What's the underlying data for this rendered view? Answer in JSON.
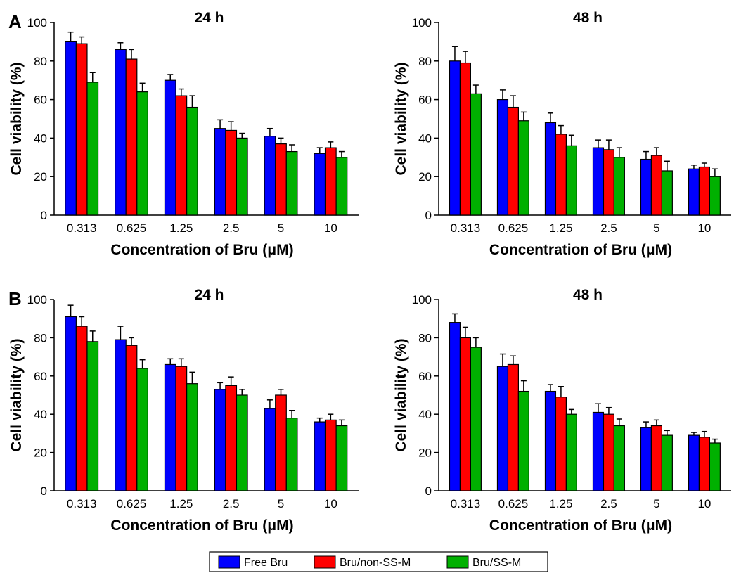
{
  "legend": {
    "items": [
      {
        "label": "Free Bru",
        "color": "#0000ff"
      },
      {
        "label": "Bru/non-SS-M",
        "color": "#ff0000"
      },
      {
        "label": "Bru/SS-M",
        "color": "#00b000"
      }
    ]
  },
  "chart_data": [
    {
      "type": "bar",
      "panel_letter": "A",
      "title": "24 h",
      "xlabel": "Concentration of Bru (μM)",
      "ylabel": "Cell viability (%)",
      "ylim": [
        0,
        100
      ],
      "yticks": [
        0,
        20,
        40,
        60,
        80,
        100
      ],
      "grid": false,
      "categories": [
        "0.313",
        "0.625",
        "1.25",
        "2.5",
        "5",
        "10"
      ],
      "series": [
        {
          "name": "Free Bru",
          "color": "#0000ff",
          "values": [
            90,
            86,
            70,
            45,
            41,
            32
          ],
          "errors": [
            5,
            3.5,
            3,
            4.5,
            4,
            3
          ]
        },
        {
          "name": "Bru/non-SS-M",
          "color": "#ff0000",
          "values": [
            89,
            81,
            62,
            44,
            37,
            35
          ],
          "errors": [
            3.5,
            5,
            3.5,
            4.5,
            3,
            3
          ]
        },
        {
          "name": "Bru/SS-M",
          "color": "#00b000",
          "values": [
            69,
            64,
            56,
            40,
            33,
            30
          ],
          "errors": [
            5,
            4.5,
            6,
            2.5,
            3.5,
            3
          ]
        }
      ]
    },
    {
      "type": "bar",
      "panel_letter": "",
      "title": "48 h",
      "xlabel": "Concentration of Bru (μM)",
      "ylabel": "Cell viability (%)",
      "ylim": [
        0,
        100
      ],
      "yticks": [
        0,
        20,
        40,
        60,
        80,
        100
      ],
      "grid": false,
      "categories": [
        "0.313",
        "0.625",
        "1.25",
        "2.5",
        "5",
        "10"
      ],
      "series": [
        {
          "name": "Free Bru",
          "color": "#0000ff",
          "values": [
            80,
            60,
            48,
            35,
            29,
            24
          ],
          "errors": [
            7.5,
            5,
            5,
            4,
            4,
            2
          ]
        },
        {
          "name": "Bru/non-SS-M",
          "color": "#ff0000",
          "values": [
            79,
            56,
            42,
            34,
            31,
            25
          ],
          "errors": [
            6,
            6,
            4.5,
            5,
            4,
            2
          ]
        },
        {
          "name": "Bru/SS-M",
          "color": "#00b000",
          "values": [
            63,
            49,
            36,
            30,
            23,
            20
          ],
          "errors": [
            4.5,
            4.5,
            5.5,
            5,
            5,
            4
          ]
        }
      ]
    },
    {
      "type": "bar",
      "panel_letter": "B",
      "title": "24 h",
      "xlabel": "Concentration of Bru (μM)",
      "ylabel": "Cell viability (%)",
      "ylim": [
        0,
        100
      ],
      "yticks": [
        0,
        20,
        40,
        60,
        80,
        100
      ],
      "grid": false,
      "categories": [
        "0.313",
        "0.625",
        "1.25",
        "2.5",
        "5",
        "10"
      ],
      "series": [
        {
          "name": "Free Bru",
          "color": "#0000ff",
          "values": [
            91,
            79,
            66,
            53,
            43,
            36
          ],
          "errors": [
            6,
            7,
            3,
            3.5,
            4.5,
            2
          ]
        },
        {
          "name": "Bru/non-SS-M",
          "color": "#ff0000",
          "values": [
            86,
            76,
            65,
            55,
            50,
            37
          ],
          "errors": [
            5,
            4,
            4,
            4.5,
            3,
            3
          ]
        },
        {
          "name": "Bru/SS-M",
          "color": "#00b000",
          "values": [
            78,
            64,
            56,
            50,
            38,
            34
          ],
          "errors": [
            5.5,
            4.5,
            6,
            3,
            4,
            3
          ]
        }
      ]
    },
    {
      "type": "bar",
      "panel_letter": "",
      "title": "48 h",
      "xlabel": "Concentration of Bru (μM)",
      "ylabel": "Cell viability (%)",
      "ylim": [
        0,
        100
      ],
      "yticks": [
        0,
        20,
        40,
        60,
        80,
        100
      ],
      "grid": false,
      "categories": [
        "0.313",
        "0.625",
        "1.25",
        "2.5",
        "5",
        "10"
      ],
      "series": [
        {
          "name": "Free Bru",
          "color": "#0000ff",
          "values": [
            88,
            65,
            52,
            41,
            33,
            29
          ],
          "errors": [
            4.5,
            6.5,
            3.5,
            4.5,
            3,
            1.5
          ]
        },
        {
          "name": "Bru/non-SS-M",
          "color": "#ff0000",
          "values": [
            80,
            66,
            49,
            40,
            34,
            28
          ],
          "errors": [
            5.5,
            4.5,
            5.5,
            3.5,
            3,
            3
          ]
        },
        {
          "name": "Bru/SS-M",
          "color": "#00b000",
          "values": [
            75,
            52,
            40,
            34,
            29,
            25
          ],
          "errors": [
            5,
            5.5,
            2.5,
            3.5,
            2.5,
            2
          ]
        }
      ]
    }
  ]
}
